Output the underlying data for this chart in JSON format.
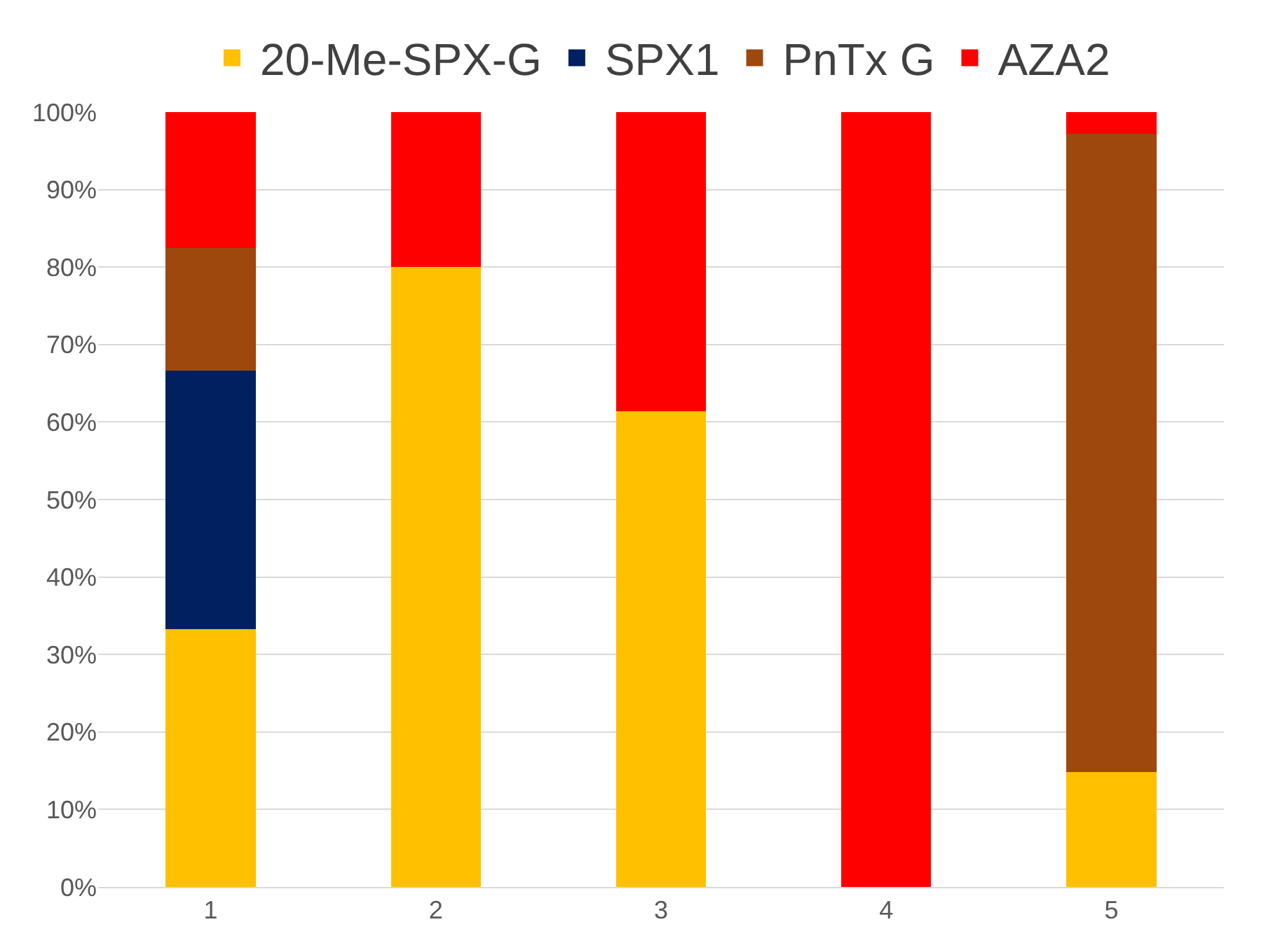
{
  "chart_data": {
    "type": "bar",
    "stacked": true,
    "categories": [
      "1",
      "2",
      "3",
      "4",
      "5"
    ],
    "series": [
      {
        "name": "20-Me-SPX-G",
        "color": "#ffc000",
        "values": [
          33.3,
          80,
          61.4,
          0,
          14.8
        ]
      },
      {
        "name": "SPX1",
        "color": "#002060",
        "values": [
          33.3,
          0,
          0,
          0,
          0
        ]
      },
      {
        "name": "PnTx G",
        "color": "#9e480e",
        "values": [
          15.9,
          0,
          0,
          0,
          82.4
        ]
      },
      {
        "name": "AZA2",
        "color": "#ff0000",
        "values": [
          17.5,
          20,
          38.6,
          100,
          2.8
        ]
      }
    ],
    "ylim": [
      0,
      100
    ],
    "yticks": [
      {
        "value": 0,
        "label": "0%"
      },
      {
        "value": 10,
        "label": "10%"
      },
      {
        "value": 20,
        "label": "20%"
      },
      {
        "value": 30,
        "label": "30%"
      },
      {
        "value": 40,
        "label": "40%"
      },
      {
        "value": 50,
        "label": "50%"
      },
      {
        "value": 60,
        "label": "60%"
      },
      {
        "value": 70,
        "label": "70%"
      },
      {
        "value": 80,
        "label": "80%"
      },
      {
        "value": 90,
        "label": "90%"
      },
      {
        "value": 100,
        "label": "100%"
      }
    ],
    "grid": "y",
    "legend": "top"
  }
}
